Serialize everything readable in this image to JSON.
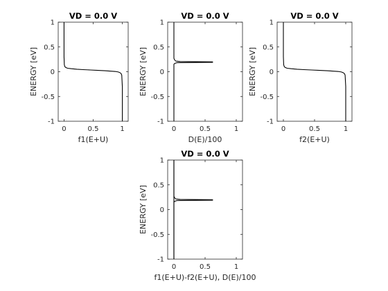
{
  "chart_data": [
    {
      "type": "line",
      "title": "VD = 0.0 V",
      "xlabel": "f1(E+U)",
      "ylabel": "ENERGY  [eV]",
      "xlim": [
        -0.1,
        1.1
      ],
      "ylim": [
        -1,
        1
      ],
      "xticks": [
        "0",
        "0.5",
        "1"
      ],
      "yticks": [
        "-1",
        "-0.5",
        "0",
        "0.5",
        "1"
      ],
      "grid": false,
      "series": [
        {
          "x": [
            1.0,
            1.0,
            0.99,
            0.98,
            0.96,
            0.93,
            0.88,
            0.8,
            0.7,
            0.58,
            0.45,
            0.33,
            0.22,
            0.13,
            0.06,
            0.03,
            0.015,
            0.005,
            0.0,
            0.0
          ],
          "y": [
            -1.0,
            -0.3,
            -0.07,
            -0.04,
            -0.02,
            -0.005,
            0.005,
            0.012,
            0.02,
            0.027,
            0.035,
            0.042,
            0.05,
            0.06,
            0.07,
            0.085,
            0.1,
            0.14,
            0.3,
            1.0
          ]
        }
      ]
    },
    {
      "type": "line",
      "title": "VD = 0.0 V",
      "xlabel": "D(E)/100",
      "ylabel": "ENERGY  [eV]",
      "xlim": [
        -0.1,
        1.1
      ],
      "ylim": [
        -1,
        1
      ],
      "xticks": [
        "0",
        "0.5",
        "1"
      ],
      "yticks": [
        "-1",
        "-0.5",
        "0",
        "0.5",
        "1"
      ],
      "grid": false,
      "series": [
        {
          "x": [
            0.0,
            0.0,
            0.01,
            0.03,
            0.05,
            0.62,
            0.62,
            0.1,
            0.03,
            0.01,
            0.0,
            0.0
          ],
          "y": [
            -1.0,
            0.15,
            0.165,
            0.175,
            0.183,
            0.19,
            0.198,
            0.205,
            0.215,
            0.24,
            0.27,
            1.0
          ]
        }
      ]
    },
    {
      "type": "line",
      "title": "VD = 0.0 V",
      "xlabel": "f2(E+U)",
      "ylabel": "ENERGY  [eV]",
      "xlim": [
        -0.1,
        1.1
      ],
      "ylim": [
        -1,
        1
      ],
      "xticks": [
        "0",
        "0.5",
        "1"
      ],
      "yticks": [
        "-1",
        "-0.5",
        "0",
        "0.5",
        "1"
      ],
      "grid": false,
      "series": [
        {
          "x": [
            1.0,
            1.0,
            0.99,
            0.98,
            0.96,
            0.93,
            0.88,
            0.8,
            0.7,
            0.58,
            0.45,
            0.33,
            0.22,
            0.13,
            0.06,
            0.03,
            0.015,
            0.005,
            0.0,
            0.0
          ],
          "y": [
            -1.0,
            -0.3,
            -0.07,
            -0.04,
            -0.02,
            -0.005,
            0.005,
            0.012,
            0.02,
            0.027,
            0.035,
            0.042,
            0.05,
            0.06,
            0.07,
            0.085,
            0.1,
            0.14,
            0.3,
            1.0
          ]
        }
      ]
    },
    {
      "type": "line",
      "title": "VD = 0.0 V",
      "xlabel": "f1(E+U)-f2(E+U), D(E)/100",
      "ylabel": "ENERGY  [eV]",
      "xlim": [
        -0.1,
        1.1
      ],
      "ylim": [
        -1,
        1
      ],
      "xticks": [
        "0",
        "0.5",
        "1"
      ],
      "yticks": [
        "-1",
        "-0.5",
        "0",
        "0.5",
        "1"
      ],
      "grid": false,
      "series": [
        {
          "x": [
            0.0,
            0.0,
            0.01,
            0.03,
            0.05,
            0.62,
            0.62,
            0.1,
            0.03,
            0.01,
            0.0,
            0.0
          ],
          "y": [
            -1.0,
            0.15,
            0.165,
            0.175,
            0.183,
            0.19,
            0.198,
            0.205,
            0.215,
            0.24,
            0.27,
            1.0
          ]
        },
        {
          "x": [
            0.0,
            0.0,
            0.0,
            0.0
          ],
          "y": [
            -1.0,
            0.0,
            0.5,
            1.0
          ]
        }
      ]
    }
  ]
}
